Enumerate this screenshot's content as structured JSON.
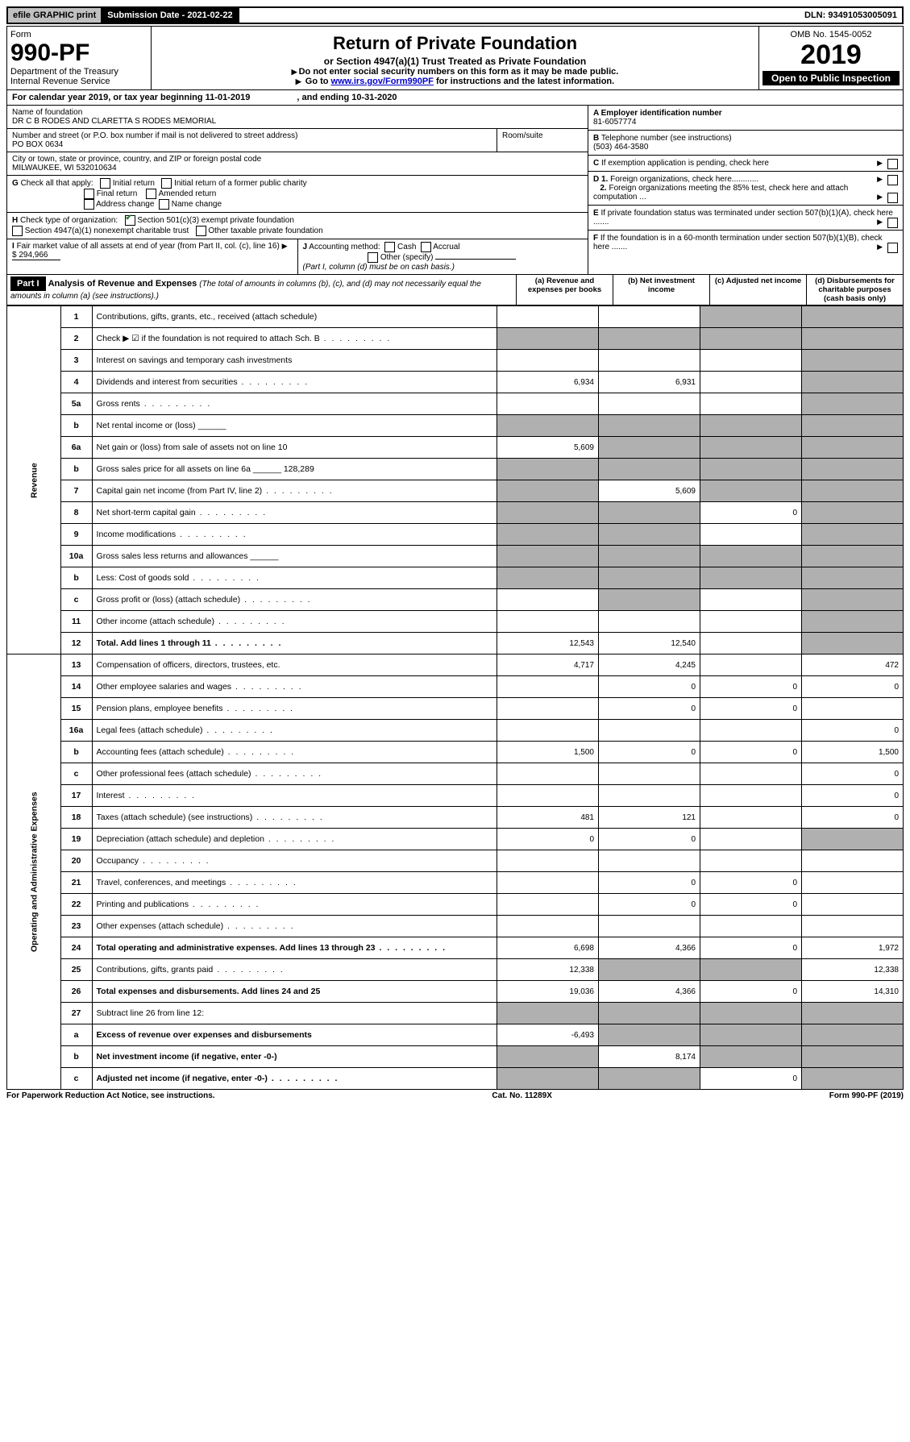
{
  "topbar": {
    "efile": "efile GRAPHIC print",
    "submission": "Submission Date - 2021-02-22",
    "dln": "DLN: 93491053005091"
  },
  "header": {
    "form_label": "Form",
    "form_number": "990-PF",
    "dept": "Department of the Treasury",
    "irs": "Internal Revenue Service",
    "title": "Return of Private Foundation",
    "subtitle": "or Section 4947(a)(1) Trust Treated as Private Foundation",
    "note1": "Do not enter social security numbers on this form as it may be made public.",
    "note2_pre": "Go to ",
    "note2_link": "www.irs.gov/Form990PF",
    "note2_post": " for instructions and the latest information.",
    "omb": "OMB No. 1545-0052",
    "year": "2019",
    "open": "Open to Public Inspection"
  },
  "calyear": {
    "text_pre": "For calendar year 2019, or tax year beginning ",
    "begin": "11-01-2019",
    "mid": " , and ending ",
    "end": "10-31-2020"
  },
  "info": {
    "name_label": "Name of foundation",
    "name": "DR C B RODES AND CLARETTA S RODES MEMORIAL",
    "addr_label": "Number and street (or P.O. box number if mail is not delivered to street address)",
    "addr": "PO BOX 0634",
    "room_label": "Room/suite",
    "city_label": "City or town, state or province, country, and ZIP or foreign postal code",
    "city": "MILWAUKEE, WI  532010634",
    "a_label": "A Employer identification number",
    "a_val": "81-6057774",
    "b_label": "B",
    "b_text": "Telephone number (see instructions)",
    "b_val": "(503) 464-3580",
    "c_text": "If exemption application is pending, check here",
    "d1": "Foreign organizations, check here............",
    "d2": "Foreign organizations meeting the 85% test, check here and attach computation ...",
    "e": "If private foundation status was terminated under section 507(b)(1)(A), check here .......",
    "f": "If the foundation is in a 60-month termination under section 507(b)(1)(B), check here .......",
    "g_label": "G",
    "g_text": "Check all that apply:",
    "g_opts": [
      "Initial return",
      "Final return",
      "Address change",
      "Initial return of a former public charity",
      "Amended return",
      "Name change"
    ],
    "h_label": "H",
    "h_text": "Check type of organization:",
    "h_opt1": "Section 501(c)(3) exempt private foundation",
    "h_opt2": "Section 4947(a)(1) nonexempt charitable trust",
    "h_opt3": "Other taxable private foundation",
    "i_label": "I",
    "i_text": "Fair market value of all assets at end of year (from Part II, col. (c), line 16)",
    "i_val": "$  294,966",
    "j_label": "J",
    "j_text": "Accounting method:",
    "j_cash": "Cash",
    "j_accrual": "Accrual",
    "j_other": "Other (specify)",
    "j_note": "(Part I, column (d) must be on cash basis.)"
  },
  "part1": {
    "label": "Part I",
    "title": "Analysis of Revenue and Expenses",
    "title_note": "(The total of amounts in columns (b), (c), and (d) may not necessarily equal the amounts in column (a) (see instructions).)",
    "col_a": "(a)   Revenue and expenses per books",
    "col_b": "(b)  Net investment income",
    "col_c": "(c)  Adjusted net income",
    "col_d": "(d)  Disbursements for charitable purposes (cash basis only)"
  },
  "sidebar": {
    "rev": "Revenue",
    "exp": "Operating and Administrative Expenses"
  },
  "rows": [
    {
      "n": "1",
      "d": "Contributions, gifts, grants, etc., received (attach schedule)",
      "a": "",
      "b": "",
      "c": "s",
      "ds": "s"
    },
    {
      "n": "2",
      "d": "Check ▶ ☑ if the foundation is not required to attach Sch. B",
      "dots": true,
      "a": "s",
      "b": "s",
      "c": "s",
      "ds": "s"
    },
    {
      "n": "3",
      "d": "Interest on savings and temporary cash investments",
      "a": "",
      "b": "",
      "c": "",
      "ds": "s"
    },
    {
      "n": "4",
      "d": "Dividends and interest from securities",
      "dots": true,
      "a": "6,934",
      "b": "6,931",
      "c": "",
      "ds": "s"
    },
    {
      "n": "5a",
      "d": "Gross rents",
      "dots": true,
      "a": "",
      "b": "",
      "c": "",
      "ds": "s"
    },
    {
      "n": "b",
      "d": "Net rental income or (loss)  ______",
      "a": "s",
      "b": "s",
      "c": "s",
      "ds": "s"
    },
    {
      "n": "6a",
      "d": "Net gain or (loss) from sale of assets not on line 10",
      "a": "5,609",
      "b": "s",
      "c": "s",
      "ds": "s"
    },
    {
      "n": "b",
      "d": "Gross sales price for all assets on line 6a ______ 128,289",
      "a": "s",
      "b": "s",
      "c": "s",
      "ds": "s"
    },
    {
      "n": "7",
      "d": "Capital gain net income (from Part IV, line 2)",
      "dots": true,
      "a": "s",
      "b": "5,609",
      "c": "s",
      "ds": "s"
    },
    {
      "n": "8",
      "d": "Net short-term capital gain",
      "dots": true,
      "a": "s",
      "b": "s",
      "c": "0",
      "ds": "s"
    },
    {
      "n": "9",
      "d": "Income modifications",
      "dots": true,
      "a": "s",
      "b": "s",
      "c": "",
      "ds": "s"
    },
    {
      "n": "10a",
      "d": "Gross sales less returns and allowances  ______",
      "a": "s",
      "b": "s",
      "c": "s",
      "ds": "s"
    },
    {
      "n": "b",
      "d": "Less: Cost of goods sold",
      "dots": true,
      "a": "s",
      "b": "s",
      "c": "s",
      "ds": "s"
    },
    {
      "n": "c",
      "d": "Gross profit or (loss) (attach schedule)",
      "dots": true,
      "a": "",
      "b": "s",
      "c": "",
      "ds": "s"
    },
    {
      "n": "11",
      "d": "Other income (attach schedule)",
      "dots": true,
      "a": "",
      "b": "",
      "c": "",
      "ds": "s"
    },
    {
      "n": "12",
      "d": "Total. Add lines 1 through 11",
      "dots": true,
      "bold": true,
      "a": "12,543",
      "b": "12,540",
      "c": "",
      "ds": "s"
    },
    {
      "n": "13",
      "d": "Compensation of officers, directors, trustees, etc.",
      "a": "4,717",
      "b": "4,245",
      "c": "",
      "ds": "472"
    },
    {
      "n": "14",
      "d": "Other employee salaries and wages",
      "dots": true,
      "a": "",
      "b": "0",
      "c": "0",
      "ds": "0"
    },
    {
      "n": "15",
      "d": "Pension plans, employee benefits",
      "dots": true,
      "a": "",
      "b": "0",
      "c": "0",
      "ds": ""
    },
    {
      "n": "16a",
      "d": "Legal fees (attach schedule)",
      "dots": true,
      "a": "",
      "b": "",
      "c": "",
      "ds": "0"
    },
    {
      "n": "b",
      "d": "Accounting fees (attach schedule)",
      "dots": true,
      "a": "1,500",
      "b": "0",
      "c": "0",
      "ds": "1,500"
    },
    {
      "n": "c",
      "d": "Other professional fees (attach schedule)",
      "dots": true,
      "a": "",
      "b": "",
      "c": "",
      "ds": "0"
    },
    {
      "n": "17",
      "d": "Interest",
      "dots": true,
      "a": "",
      "b": "",
      "c": "",
      "ds": "0"
    },
    {
      "n": "18",
      "d": "Taxes (attach schedule) (see instructions)",
      "dots": true,
      "a": "481",
      "b": "121",
      "c": "",
      "ds": "0"
    },
    {
      "n": "19",
      "d": "Depreciation (attach schedule) and depletion",
      "dots": true,
      "a": "0",
      "b": "0",
      "c": "",
      "ds": "s"
    },
    {
      "n": "20",
      "d": "Occupancy",
      "dots": true,
      "a": "",
      "b": "",
      "c": "",
      "ds": ""
    },
    {
      "n": "21",
      "d": "Travel, conferences, and meetings",
      "dots": true,
      "a": "",
      "b": "0",
      "c": "0",
      "ds": ""
    },
    {
      "n": "22",
      "d": "Printing and publications",
      "dots": true,
      "a": "",
      "b": "0",
      "c": "0",
      "ds": ""
    },
    {
      "n": "23",
      "d": "Other expenses (attach schedule)",
      "dots": true,
      "a": "",
      "b": "",
      "c": "",
      "ds": ""
    },
    {
      "n": "24",
      "d": "Total operating and administrative expenses. Add lines 13 through 23",
      "dots": true,
      "bold": true,
      "a": "6,698",
      "b": "4,366",
      "c": "0",
      "ds": "1,972"
    },
    {
      "n": "25",
      "d": "Contributions, gifts, grants paid",
      "dots": true,
      "a": "12,338",
      "b": "s",
      "c": "s",
      "ds": "12,338"
    },
    {
      "n": "26",
      "d": "Total expenses and disbursements. Add lines 24 and 25",
      "bold": true,
      "a": "19,036",
      "b": "4,366",
      "c": "0",
      "ds": "14,310"
    },
    {
      "n": "27",
      "d": "Subtract line 26 from line 12:",
      "a": "s",
      "b": "s",
      "c": "s",
      "ds": "s"
    },
    {
      "n": "a",
      "d": "Excess of revenue over expenses and disbursements",
      "bold": true,
      "a": "-6,493",
      "b": "s",
      "c": "s",
      "ds": "s"
    },
    {
      "n": "b",
      "d": "Net investment income (if negative, enter -0-)",
      "bold": true,
      "a": "s",
      "b": "8,174",
      "c": "s",
      "ds": "s"
    },
    {
      "n": "c",
      "d": "Adjusted net income (if negative, enter -0-)",
      "bold": true,
      "dots": true,
      "a": "s",
      "b": "s",
      "c": "0",
      "ds": "s"
    }
  ],
  "footer": {
    "left": "For Paperwork Reduction Act Notice, see instructions.",
    "mid": "Cat. No. 11289X",
    "right": "Form 990-PF (2019)"
  }
}
